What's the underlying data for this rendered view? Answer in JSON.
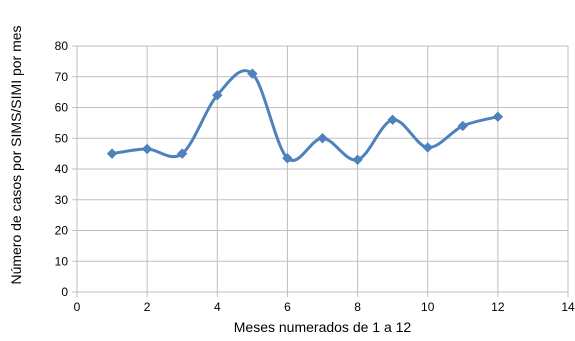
{
  "chart_data": {
    "type": "line",
    "title": "",
    "xlabel": "Meses numerados de 1 a 12",
    "ylabel": "Número de casos por SIMS/SIMI por mes",
    "xlim": [
      0,
      14
    ],
    "ylim": [
      0,
      80
    ],
    "x_ticks": [
      0,
      2,
      4,
      6,
      8,
      10,
      12,
      14
    ],
    "y_ticks": [
      0,
      10,
      20,
      30,
      40,
      50,
      60,
      70,
      80
    ],
    "grid": true,
    "smooth": true,
    "legend": "none",
    "series": [
      {
        "x": [
          1,
          2,
          3,
          4,
          5,
          6,
          7,
          8,
          9,
          10,
          11,
          12
        ],
        "y": [
          45,
          46.5,
          45,
          64,
          71,
          43.5,
          50,
          43,
          56,
          47,
          54,
          57
        ],
        "color": "#4f81bd",
        "marker": "diamond"
      }
    ]
  }
}
